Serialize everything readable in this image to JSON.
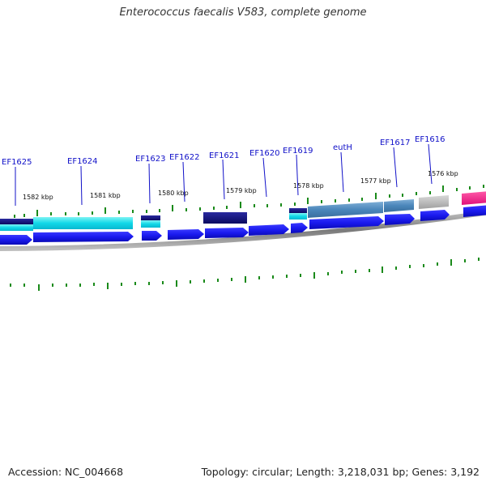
{
  "title": "Enterococcus faecalis V583, complete genome",
  "footer": {
    "accession": "Accession: NC_004668",
    "summary": "Topology: circular; Length: 3,218,031 bp; Genes: 3,192"
  },
  "colors": {
    "label": "#1010c8",
    "cds_arrow": "#1a1aee",
    "tick": "#1a8a1a",
    "backbone": "#8c8c8c"
  },
  "gene_labels": [
    "EF1625",
    "EF1624",
    "EF1623",
    "EF1622",
    "EF1621",
    "EF1620",
    "EF1619",
    "eutH",
    "EF1617",
    "EF1616"
  ],
  "scale_labels": [
    "1582 kbp",
    "1581 kbp",
    "1580 kbp",
    "1579 kbp",
    "1578 kbp",
    "1577 kbp",
    "1576 kbp"
  ]
}
